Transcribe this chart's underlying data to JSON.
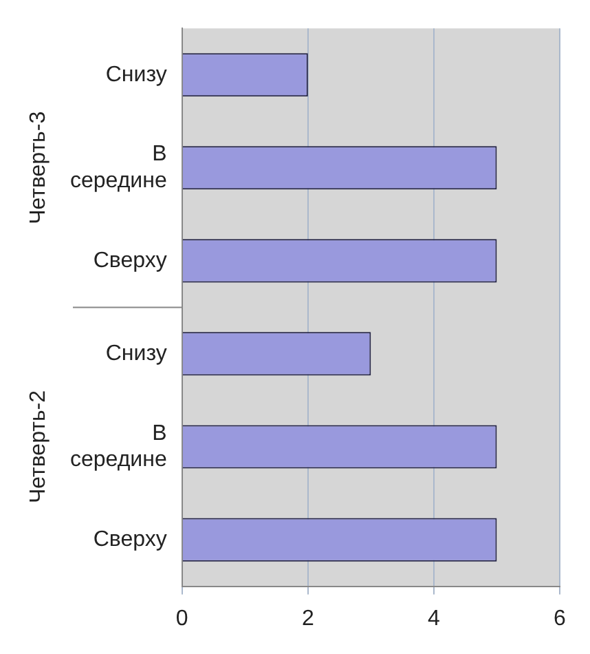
{
  "chart_data": {
    "type": "bar",
    "orientation": "horizontal",
    "categories": [
      "Снизу",
      "В середине",
      "Сверху",
      "Снизу",
      "В середине",
      "Сверху"
    ],
    "values": [
      2,
      5,
      5,
      3,
      5,
      5
    ],
    "color": "#9999dd",
    "xlim": [
      0,
      6
    ],
    "xticks": [
      0,
      2,
      4,
      6
    ],
    "grid": "x",
    "annotations": [
      "Четверть-3",
      "Четверть-2"
    ]
  }
}
